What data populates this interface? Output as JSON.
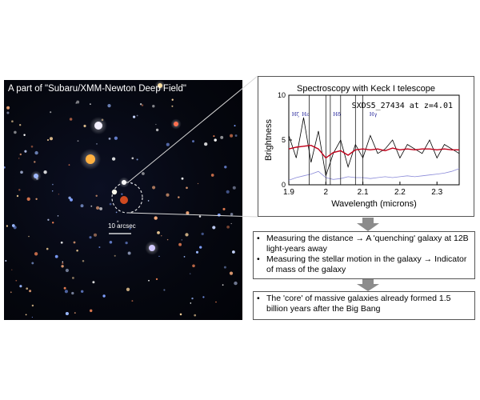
{
  "sky_image": {
    "title": "A part of \"Subaru/XMM-Newton Deep Field\"",
    "scale_bar_label": "10 arcsec"
  },
  "spectrum": {
    "title": "Spectroscopy with Keck I telescope",
    "object_label": "SXDS5_27434 at z=4.01",
    "line_markers": [
      "Hζ",
      "Hε",
      "Hδ",
      "Hγ"
    ],
    "colors": {
      "observed": "#000000",
      "model": "#c0001a",
      "noise": "#8a8ad8"
    }
  },
  "chart_data": {
    "type": "line",
    "title": "",
    "xlabel": "Wavelength (microns)",
    "ylabel": "Brightness",
    "xlim": [
      1.9,
      2.36
    ],
    "ylim": [
      0,
      10
    ],
    "xticks": [
      "1.9",
      "2",
      "2.1",
      "2.2",
      "2.3"
    ],
    "yticks": [
      "0",
      "5",
      "10"
    ],
    "grid": false,
    "x": [
      1.9,
      1.92,
      1.94,
      1.96,
      1.98,
      2.0,
      2.02,
      2.04,
      2.06,
      2.08,
      2.1,
      2.12,
      2.14,
      2.16,
      2.18,
      2.2,
      2.22,
      2.24,
      2.26,
      2.28,
      2.3,
      2.32,
      2.34,
      2.36
    ],
    "series": [
      {
        "values": [
          5.5,
          3.0,
          7.5,
          2.5,
          6.0,
          1.0,
          3.5,
          5.0,
          2.0,
          4.5,
          3.0,
          5.5,
          3.5,
          4.0,
          5.0,
          3.0,
          4.5,
          4.0,
          3.5,
          5.0,
          3.0,
          4.5,
          4.0,
          3.5
        ]
      },
      {
        "values": [
          4.0,
          4.2,
          4.3,
          4.4,
          4.0,
          3.0,
          3.6,
          3.8,
          3.3,
          3.9,
          4.0,
          3.9,
          4.0,
          3.8,
          4.1,
          3.9,
          4.0,
          3.9,
          4.0,
          4.0,
          3.9,
          4.0,
          3.9,
          3.9
        ]
      },
      {
        "values": [
          0.5,
          0.8,
          1.0,
          1.2,
          1.5,
          0.8,
          0.6,
          0.7,
          0.9,
          0.8,
          0.8,
          0.7,
          0.8,
          0.9,
          0.8,
          0.9,
          1.0,
          0.9,
          1.0,
          1.1,
          1.2,
          1.3,
          1.5,
          1.8
        ]
      }
    ]
  },
  "findings": {
    "box1": [
      "Measuring the distance → A 'quenching' galaxy at 12B light-years away",
      "Measuring the stellar motion in the galaxy → Indicator of mass of the galaxy"
    ],
    "box2": [
      "The 'core' of massive galaxies already formed 1.5 billion years after the Big Bang"
    ]
  },
  "colors": {
    "arrow": "#8c8c8c",
    "sky_background": "#05070f"
  }
}
